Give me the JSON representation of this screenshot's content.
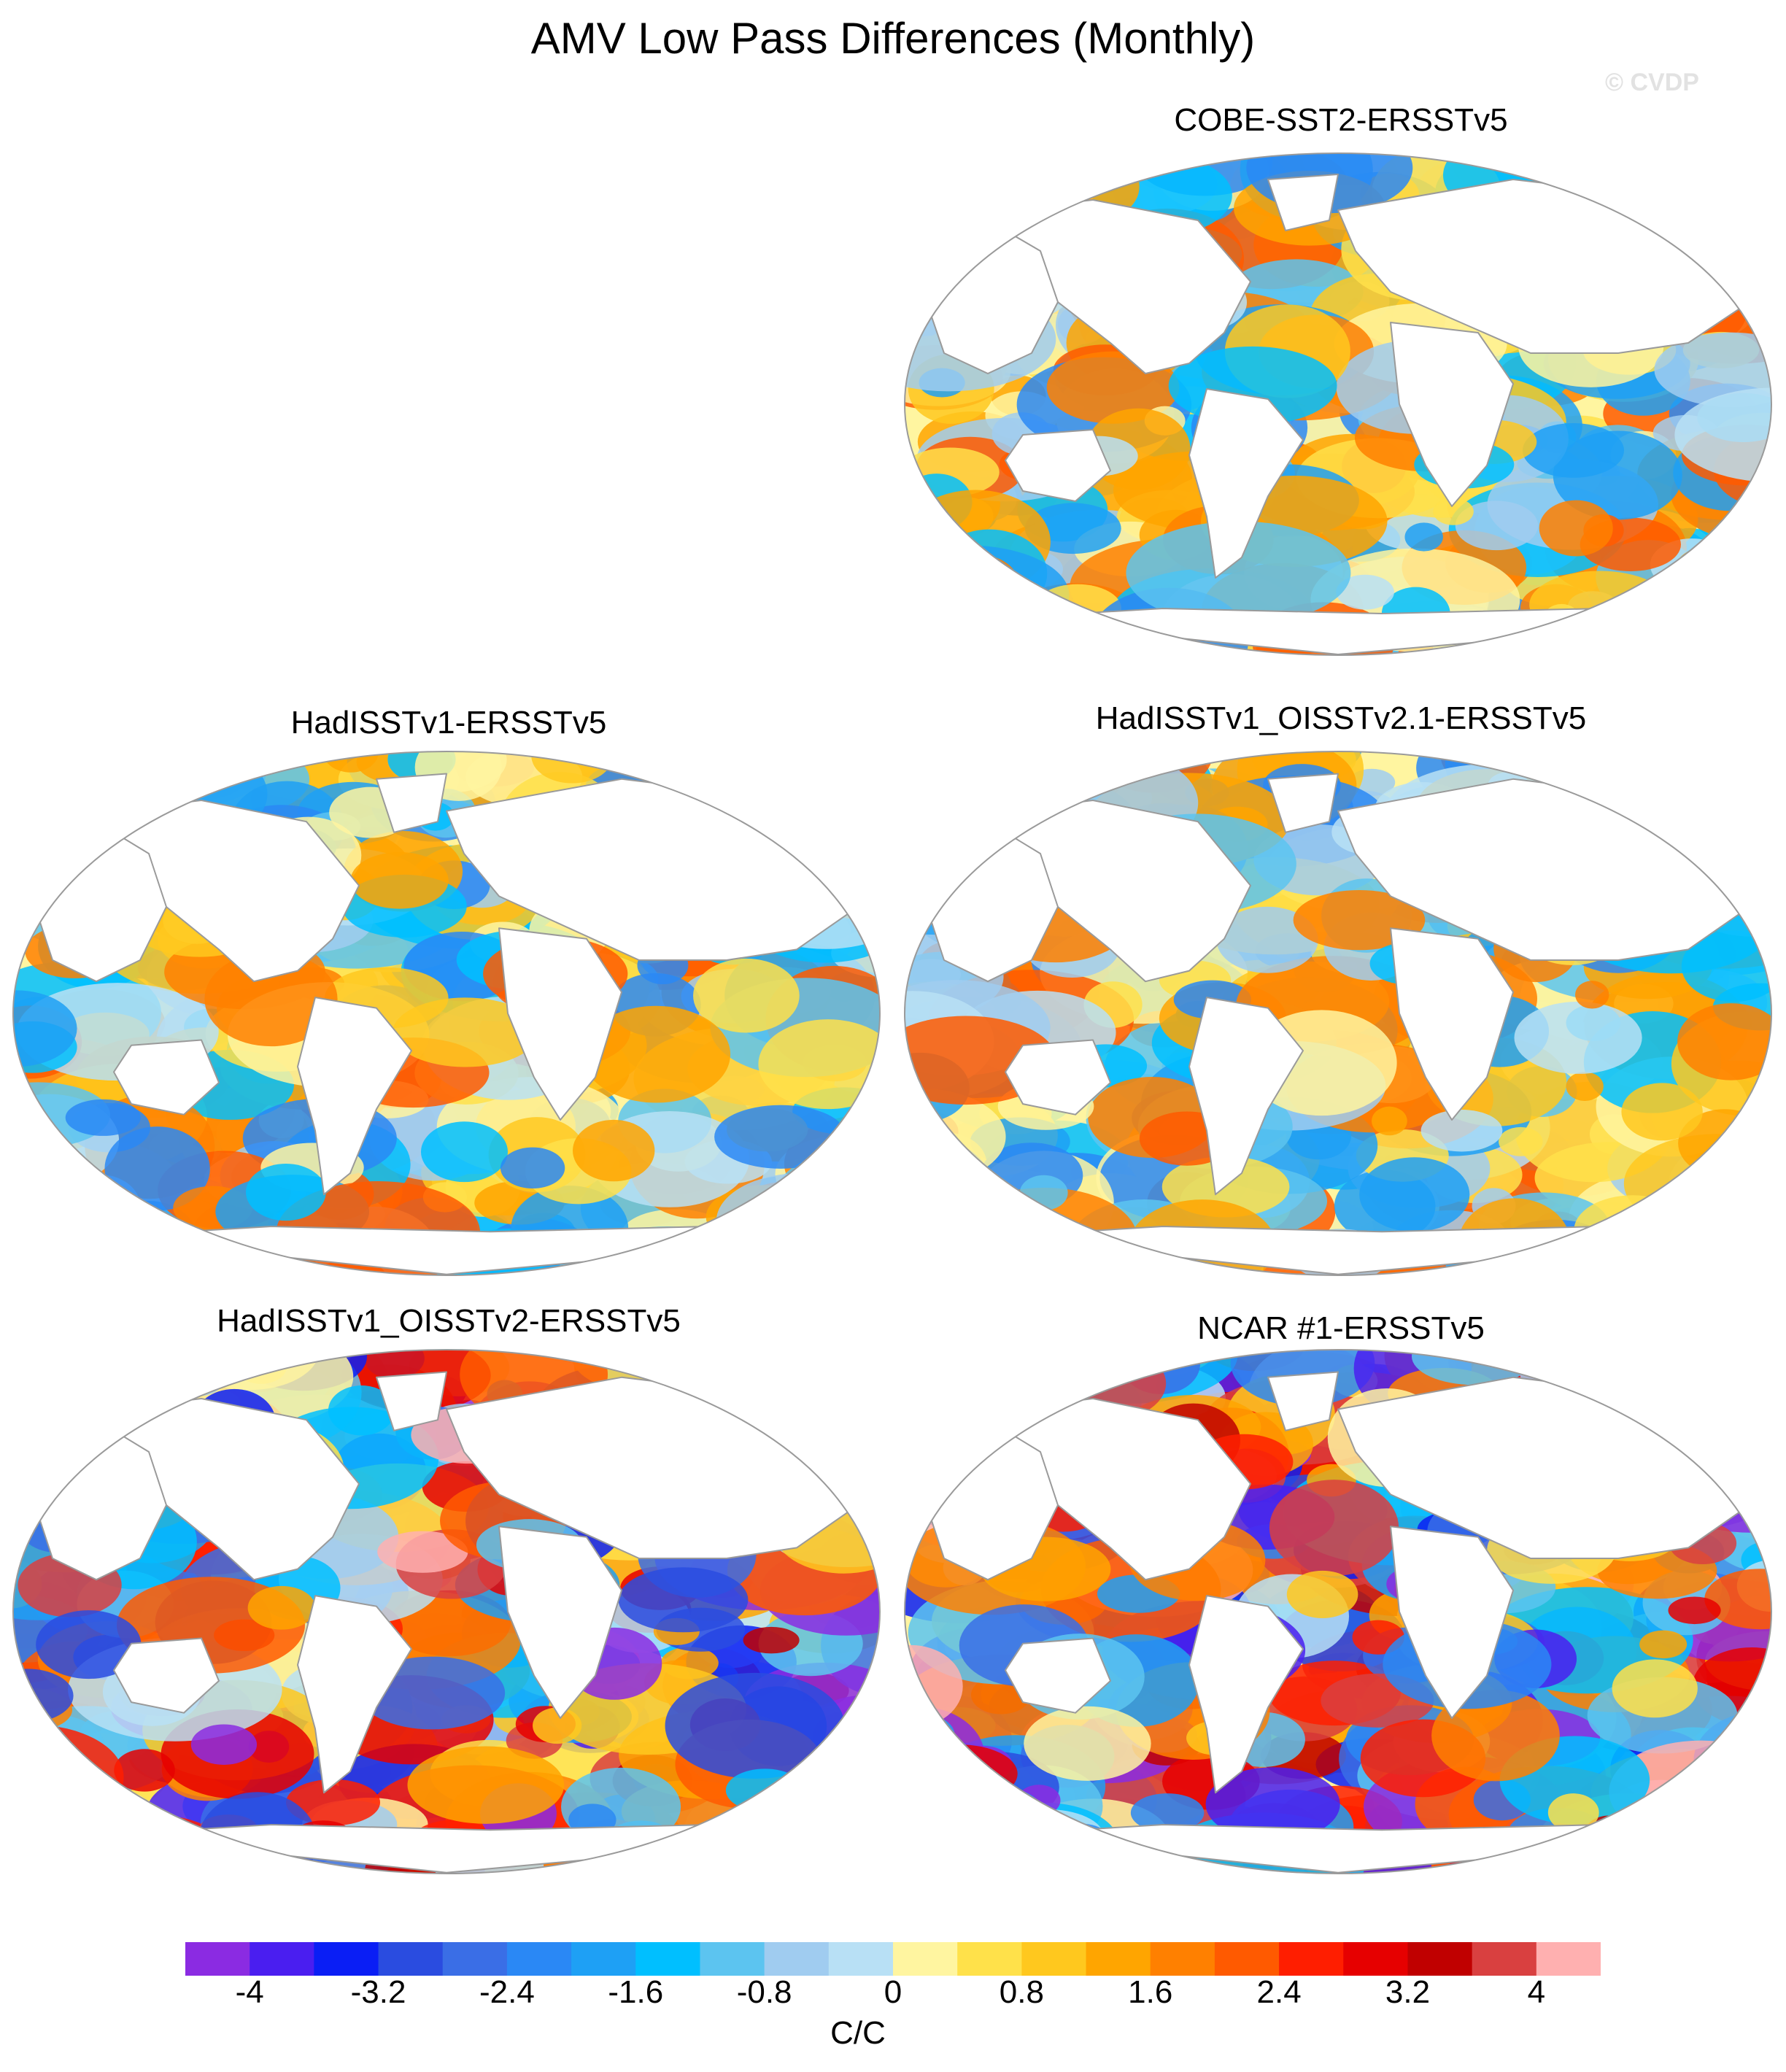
{
  "title": "AMV Low Pass Differences (Monthly)",
  "watermark": "© CVDP",
  "panels": [
    {
      "id": "cobe",
      "title": "COBE-SST2-ERSSTv5"
    },
    {
      "id": "hadisst",
      "title": "HadISSTv1-ERSSTv5"
    },
    {
      "id": "hadoi21",
      "title": "HadISSTv1_OISSTv2.1-ERSSTv5"
    },
    {
      "id": "hadoi2",
      "title": "HadISSTv1_OISSTv2-ERSSTv5"
    },
    {
      "id": "ncar",
      "title": "NCAR #1-ERSSTv5"
    }
  ],
  "colorbar": {
    "units": "C/C",
    "tick_labels": [
      "-4",
      "-3.2",
      "-2.4",
      "-1.6",
      "-0.8",
      "0",
      "0.8",
      "1.6",
      "2.4",
      "3.2",
      "4"
    ],
    "colors": [
      "#8b2be2",
      "#4a1ef0",
      "#0a1ef5",
      "#2a4ce0",
      "#3a6ee6",
      "#2a88f5",
      "#1ea0f5",
      "#00bfff",
      "#5cc4f0",
      "#a0ccf0",
      "#b8e0f5",
      "#fff5a0",
      "#ffe14a",
      "#ffc81e",
      "#ffa500",
      "#ff8000",
      "#ff5a00",
      "#ff1e00",
      "#e60000",
      "#c00000",
      "#d94040",
      "#ffb0b0"
    ]
  },
  "map_style": {
    "ocean_fill": "#ffffff",
    "land_outline": "#9a9a9a",
    "frame": "#9a9a9a"
  }
}
